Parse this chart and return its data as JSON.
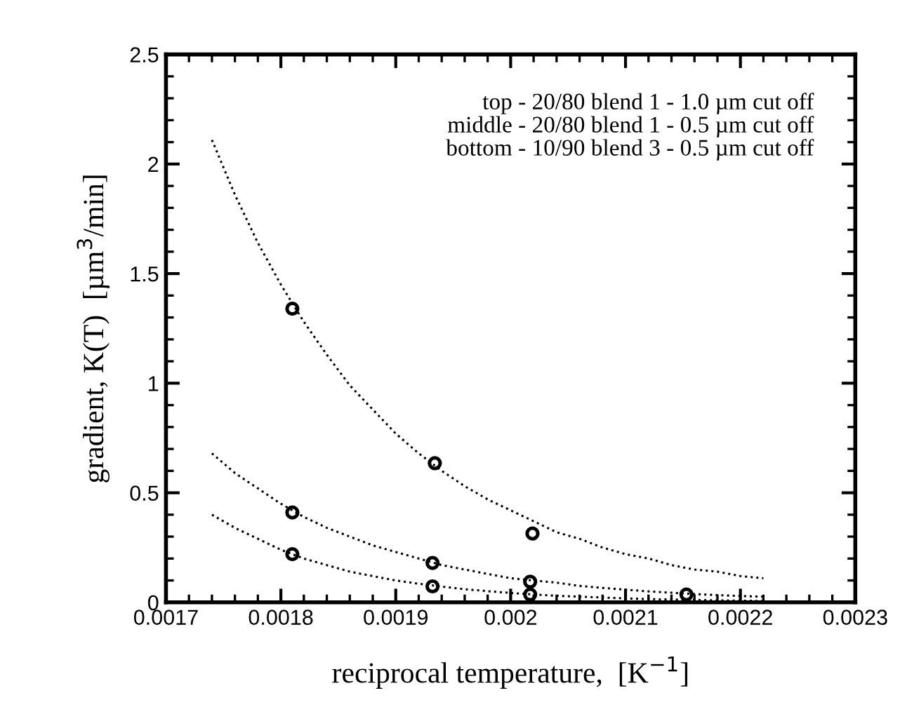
{
  "chart_data": {
    "type": "scatter",
    "xlabel": "reciprocal temperature,  [K$^{−1}$]",
    "ylabel": "gradient, K(T)  [µm$^{3}$/min]",
    "annotations": [
      "top - 20/80 blend 1 - 1.0 µm cut off\nmiddle - 20/80 blend 1 - 0.5 µm cut off\nbottom - 10/90 blend 3 - 0.5 µm cut off"
    ],
    "xlim": [
      0.0017,
      0.0023
    ],
    "xticks": [
      0.0017,
      0.0018,
      0.0019,
      0.002,
      0.0021,
      0.0022,
      0.0023
    ],
    "ylim": [
      0,
      2.5
    ],
    "yticks": [
      0,
      0.5,
      1,
      1.5,
      2,
      2.5
    ],
    "grid": false,
    "legend": false,
    "marker": "circle",
    "series": [
      {
        "color": "#000000",
        "x": [
          0.00181,
          0.001934,
          0.002019,
          0.002153
        ],
        "values": [
          1.34,
          0.635,
          0.314,
          0.036
        ]
      },
      {
        "color": "#000000",
        "x": [
          0.00181,
          0.001932,
          0.002017
        ],
        "values": [
          0.41,
          0.18,
          0.094
        ]
      },
      {
        "color": "#000000",
        "x": [
          0.00181,
          0.001932,
          0.002017
        ],
        "values": [
          0.22,
          0.073,
          0.036
        ]
      },
      {
        "type": "line",
        "color": "#000000",
        "line_style": "dotted",
        "marker": "none",
        "x": [
          0.00174,
          0.00176,
          0.00178,
          0.0018,
          0.00182,
          0.00184,
          0.00186,
          0.00188,
          0.0019,
          0.00192,
          0.00194,
          0.00196,
          0.00198,
          0.002,
          0.00202,
          0.00204,
          0.00206,
          0.00208,
          0.0021,
          0.00212,
          0.00214,
          0.00216,
          0.00218,
          0.0022,
          0.00222
        ],
        "values": [
          2.11,
          1.86,
          1.64,
          1.45,
          1.28,
          1.13,
          0.99,
          0.88,
          0.77,
          0.68,
          0.6,
          0.53,
          0.47,
          0.42,
          0.37,
          0.32,
          0.29,
          0.25,
          0.22,
          0.2,
          0.17,
          0.15,
          0.14,
          0.12,
          0.11
        ]
      },
      {
        "type": "line",
        "color": "#000000",
        "line_style": "dotted",
        "marker": "none",
        "x": [
          0.00174,
          0.00176,
          0.00178,
          0.0018,
          0.00182,
          0.00184,
          0.00186,
          0.00188,
          0.0019,
          0.00192,
          0.00194,
          0.00196,
          0.00198,
          0.002,
          0.00202,
          0.00204,
          0.00206,
          0.00208,
          0.0021,
          0.00212,
          0.00214,
          0.00216,
          0.00218,
          0.0022,
          0.00222
        ],
        "values": [
          0.68,
          0.59,
          0.52,
          0.45,
          0.39,
          0.34,
          0.3,
          0.26,
          0.23,
          0.2,
          0.17,
          0.15,
          0.13,
          0.11,
          0.1,
          0.09,
          0.075,
          0.066,
          0.058,
          0.05,
          0.044,
          0.038,
          0.033,
          0.029,
          0.026
        ]
      },
      {
        "type": "line",
        "color": "#000000",
        "line_style": "dotted",
        "marker": "none",
        "x": [
          0.00174,
          0.00176,
          0.00178,
          0.0018,
          0.00182,
          0.00184,
          0.00186,
          0.00188,
          0.0019,
          0.00192,
          0.00194,
          0.00196,
          0.00198,
          0.002,
          0.00202,
          0.00204,
          0.00206,
          0.00208,
          0.0021,
          0.00212,
          0.00214,
          0.00216,
          0.00218,
          0.0022,
          0.00222
        ],
        "values": [
          0.4,
          0.34,
          0.29,
          0.24,
          0.2,
          0.17,
          0.14,
          0.12,
          0.1,
          0.085,
          0.072,
          0.06,
          0.051,
          0.043,
          0.036,
          0.03,
          0.026,
          0.022,
          0.018,
          0.015,
          0.013,
          0.011,
          0.009,
          0.008,
          0.006
        ]
      }
    ]
  }
}
